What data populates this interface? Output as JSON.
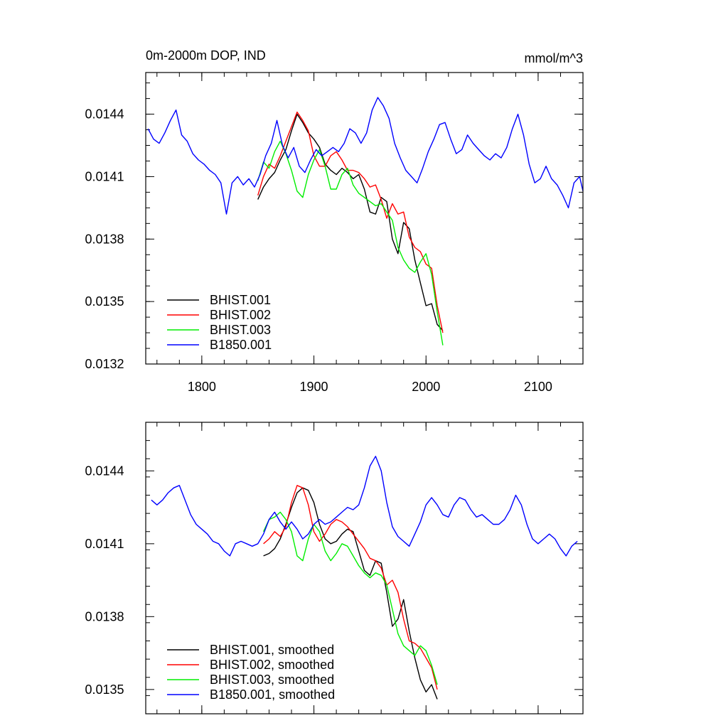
{
  "chart_data": [
    {
      "type": "line",
      "title": "0m-2000m DOP, IND",
      "units": "mmol/m^3",
      "xlabel": "",
      "ylabel": "",
      "xlim": [
        1750,
        2140
      ],
      "ylim": [
        0.0132,
        0.0146
      ],
      "xticks": [
        1800,
        1900,
        2000,
        2100
      ],
      "xtick_labels": [
        "1800",
        "1900",
        "2000",
        "2100"
      ],
      "yticks": [
        0.0132,
        0.0135,
        0.0138,
        0.0141,
        0.0144
      ],
      "ytick_labels": [
        "0.0132",
        "0.0135",
        "0.0138",
        "0.0141",
        "0.0144"
      ],
      "legend_position": "bottom-left",
      "series": [
        {
          "name": "BHIST.001",
          "color": "#000000",
          "x": [
            1850,
            1855,
            1860,
            1865,
            1870,
            1875,
            1880,
            1885,
            1890,
            1895,
            1900,
            1905,
            1910,
            1915,
            1920,
            1925,
            1930,
            1935,
            1940,
            1945,
            1950,
            1955,
            1960,
            1965,
            1970,
            1975,
            1980,
            1985,
            1990,
            1995,
            2000,
            2005,
            2010,
            2015
          ],
          "y": [
            0.01399,
            0.01405,
            0.01409,
            0.01412,
            0.01418,
            0.01423,
            0.01432,
            0.0144,
            0.01436,
            0.01431,
            0.01428,
            0.01424,
            0.01416,
            0.01413,
            0.01411,
            0.01414,
            0.01412,
            0.01409,
            0.01411,
            0.01404,
            0.01393,
            0.01392,
            0.014,
            0.01398,
            0.0138,
            0.01373,
            0.01388,
            0.01385,
            0.0137,
            0.01359,
            0.01348,
            0.01349,
            0.01339,
            0.01336
          ]
        },
        {
          "name": "BHIST.002",
          "color": "#ff0000",
          "x": [
            1850,
            1855,
            1860,
            1865,
            1870,
            1875,
            1880,
            1885,
            1890,
            1895,
            1900,
            1905,
            1910,
            1915,
            1920,
            1925,
            1930,
            1935,
            1940,
            1945,
            1950,
            1955,
            1960,
            1965,
            1970,
            1975,
            1980,
            1985,
            1990,
            1995,
            2000,
            2005,
            2010,
            2015
          ],
          "y": [
            0.01401,
            0.0141,
            0.01416,
            0.01414,
            0.0142,
            0.01427,
            0.01434,
            0.01441,
            0.01437,
            0.01432,
            0.0142,
            0.01415,
            0.01415,
            0.0142,
            0.01422,
            0.01418,
            0.01413,
            0.01413,
            0.01412,
            0.01409,
            0.01405,
            0.01406,
            0.01399,
            0.0139,
            0.01397,
            0.01392,
            0.01393,
            0.01381,
            0.01376,
            0.01374,
            0.01368,
            0.01366,
            0.01348,
            0.01335
          ]
        },
        {
          "name": "BHIST.003",
          "color": "#00ee00",
          "x": [
            1850,
            1855,
            1860,
            1865,
            1870,
            1875,
            1880,
            1885,
            1890,
            1895,
            1900,
            1905,
            1910,
            1915,
            1920,
            1925,
            1930,
            1935,
            1940,
            1945,
            1950,
            1955,
            1960,
            1965,
            1970,
            1975,
            1980,
            1985,
            1990,
            1995,
            2000,
            2005,
            2010,
            2015
          ],
          "y": [
            0.01408,
            0.01417,
            0.01414,
            0.01422,
            0.01427,
            0.01421,
            0.01413,
            0.01403,
            0.014,
            0.01411,
            0.01418,
            0.01423,
            0.01415,
            0.01404,
            0.01404,
            0.01411,
            0.01414,
            0.01406,
            0.01402,
            0.014,
            0.01398,
            0.01396,
            0.01397,
            0.01393,
            0.01389,
            0.01376,
            0.0137,
            0.01366,
            0.01364,
            0.01369,
            0.01373,
            0.01363,
            0.01345,
            0.01329
          ]
        },
        {
          "name": "B1850.001",
          "color": "#0000ff",
          "x": [
            1752,
            1757,
            1762,
            1767,
            1772,
            1777,
            1782,
            1787,
            1792,
            1797,
            1802,
            1807,
            1812,
            1817,
            1822,
            1827,
            1832,
            1837,
            1842,
            1847,
            1852,
            1857,
            1862,
            1867,
            1872,
            1877,
            1882,
            1887,
            1892,
            1897,
            1902,
            1907,
            1912,
            1917,
            1922,
            1927,
            1932,
            1937,
            1942,
            1947,
            1952,
            1957,
            1962,
            1967,
            1972,
            1977,
            1982,
            1987,
            1992,
            1997,
            2002,
            2007,
            2012,
            2017,
            2022,
            2027,
            2032,
            2037,
            2042,
            2047,
            2052,
            2057,
            2062,
            2067,
            2072,
            2077,
            2082,
            2087,
            2092,
            2097,
            2102,
            2107,
            2112,
            2117,
            2122,
            2127,
            2132,
            2137,
            2140
          ],
          "y": [
            0.01433,
            0.01428,
            0.01426,
            0.01431,
            0.01437,
            0.01442,
            0.0143,
            0.01427,
            0.01421,
            0.01418,
            0.01416,
            0.01413,
            0.01411,
            0.01407,
            0.01392,
            0.01407,
            0.0141,
            0.01406,
            0.01409,
            0.01405,
            0.01411,
            0.0142,
            0.01426,
            0.01437,
            0.01425,
            0.01419,
            0.01424,
            0.01415,
            0.01412,
            0.01418,
            0.01423,
            0.0142,
            0.01422,
            0.01424,
            0.01422,
            0.01426,
            0.01433,
            0.01431,
            0.01426,
            0.01431,
            0.01442,
            0.01448,
            0.01444,
            0.01438,
            0.01426,
            0.01419,
            0.01413,
            0.0141,
            0.01407,
            0.01414,
            0.01422,
            0.01428,
            0.01435,
            0.01436,
            0.01428,
            0.01421,
            0.01423,
            0.0143,
            0.01426,
            0.01423,
            0.0142,
            0.01418,
            0.01421,
            0.01419,
            0.01424,
            0.01433,
            0.0144,
            0.0143,
            0.01416,
            0.01407,
            0.01409,
            0.01415,
            0.01409,
            0.01406,
            0.01401,
            0.01395,
            0.01407,
            0.0141,
            0.01403
          ]
        }
      ]
    },
    {
      "type": "line",
      "title": "",
      "units": "",
      "xlabel": "",
      "ylabel": "",
      "xlim": [
        1750,
        2140
      ],
      "ylim": [
        0.0134,
        0.0146
      ],
      "xticks": [
        1800,
        1900,
        2000,
        2100
      ],
      "xtick_labels": [],
      "yticks": [
        0.0135,
        0.0138,
        0.0141,
        0.0144
      ],
      "ytick_labels": [
        "0.0135",
        "0.0138",
        "0.0141",
        "0.0144"
      ],
      "legend_position": "bottom-left",
      "series": [
        {
          "name": "BHIST.001, smoothed",
          "color": "#000000",
          "x": [
            1855,
            1860,
            1865,
            1870,
            1875,
            1880,
            1885,
            1890,
            1895,
            1900,
            1905,
            1910,
            1915,
            1920,
            1925,
            1930,
            1935,
            1940,
            1945,
            1950,
            1955,
            1960,
            1965,
            1970,
            1975,
            1980,
            1985,
            1990,
            1995,
            2000,
            2005,
            2010
          ],
          "y": [
            0.01405,
            0.01406,
            0.01408,
            0.01412,
            0.01418,
            0.01425,
            0.01431,
            0.01433,
            0.01432,
            0.01427,
            0.01418,
            0.01412,
            0.0141,
            0.01411,
            0.01414,
            0.01416,
            0.01415,
            0.01407,
            0.01399,
            0.01397,
            0.01403,
            0.01402,
            0.0139,
            0.01376,
            0.01379,
            0.01387,
            0.01374,
            0.01363,
            0.01354,
            0.01349,
            0.01352,
            0.01346
          ]
        },
        {
          "name": "BHIST.002, smoothed",
          "color": "#ff0000",
          "x": [
            1855,
            1860,
            1865,
            1870,
            1875,
            1880,
            1885,
            1890,
            1895,
            1900,
            1905,
            1910,
            1915,
            1920,
            1925,
            1930,
            1935,
            1940,
            1945,
            1950,
            1955,
            1960,
            1965,
            1970,
            1975,
            1980,
            1985,
            1990,
            1995,
            2000,
            2005,
            2010
          ],
          "y": [
            0.0141,
            0.01412,
            0.01415,
            0.01413,
            0.01417,
            0.01427,
            0.01434,
            0.01433,
            0.01426,
            0.01415,
            0.01411,
            0.01414,
            0.01418,
            0.0142,
            0.01419,
            0.01417,
            0.01414,
            0.01411,
            0.01408,
            0.01404,
            0.01403,
            0.014,
            0.01393,
            0.01395,
            0.0139,
            0.01379,
            0.0137,
            0.01369,
            0.01367,
            0.01363,
            0.01359,
            0.0135
          ]
        },
        {
          "name": "BHIST.003, smoothed",
          "color": "#00ee00",
          "x": [
            1855,
            1860,
            1865,
            1870,
            1875,
            1880,
            1885,
            1890,
            1895,
            1900,
            1905,
            1910,
            1915,
            1920,
            1925,
            1930,
            1935,
            1940,
            1945,
            1950,
            1955,
            1960,
            1965,
            1970,
            1975,
            1980,
            1985,
            1990,
            1995,
            2000,
            2005,
            2010
          ],
          "y": [
            0.01415,
            0.0142,
            0.01421,
            0.01423,
            0.0142,
            0.01415,
            0.01405,
            0.01403,
            0.01412,
            0.01418,
            0.01415,
            0.01407,
            0.01403,
            0.01406,
            0.0141,
            0.01409,
            0.01405,
            0.01401,
            0.01398,
            0.01396,
            0.01398,
            0.01397,
            0.01393,
            0.01383,
            0.01373,
            0.01368,
            0.01366,
            0.01364,
            0.01368,
            0.01366,
            0.0136,
            0.01352
          ]
        },
        {
          "name": "B1850.001, smoothed",
          "color": "#0000ff",
          "x": [
            1755,
            1760,
            1765,
            1770,
            1775,
            1780,
            1785,
            1790,
            1795,
            1800,
            1805,
            1810,
            1815,
            1820,
            1825,
            1830,
            1835,
            1840,
            1845,
            1850,
            1855,
            1860,
            1865,
            1870,
            1875,
            1880,
            1885,
            1890,
            1895,
            1900,
            1905,
            1910,
            1915,
            1920,
            1925,
            1930,
            1935,
            1940,
            1945,
            1950,
            1955,
            1960,
            1965,
            1970,
            1975,
            1980,
            1985,
            1990,
            1995,
            2000,
            2005,
            2010,
            2015,
            2020,
            2025,
            2030,
            2035,
            2040,
            2045,
            2050,
            2055,
            2060,
            2065,
            2070,
            2075,
            2080,
            2085,
            2090,
            2095,
            2100,
            2105,
            2110,
            2115,
            2120,
            2125,
            2130,
            2135
          ],
          "y": [
            0.01428,
            0.01426,
            0.01428,
            0.01431,
            0.01433,
            0.01434,
            0.01428,
            0.01422,
            0.01418,
            0.01416,
            0.01414,
            0.01411,
            0.0141,
            0.01407,
            0.01405,
            0.0141,
            0.01411,
            0.0141,
            0.01409,
            0.0141,
            0.01414,
            0.0142,
            0.01423,
            0.01419,
            0.01416,
            0.01419,
            0.01416,
            0.01412,
            0.01414,
            0.01418,
            0.0142,
            0.01418,
            0.01419,
            0.01421,
            0.01423,
            0.01425,
            0.01424,
            0.01426,
            0.01433,
            0.01442,
            0.01446,
            0.0144,
            0.01427,
            0.01417,
            0.01413,
            0.01411,
            0.01409,
            0.01414,
            0.01419,
            0.01426,
            0.01429,
            0.01426,
            0.01422,
            0.01421,
            0.01426,
            0.01429,
            0.01428,
            0.01424,
            0.01421,
            0.01422,
            0.0142,
            0.01418,
            0.01418,
            0.0142,
            0.01424,
            0.0143,
            0.01426,
            0.01418,
            0.01412,
            0.0141,
            0.01412,
            0.01414,
            0.01412,
            0.01408,
            0.01405,
            0.01409,
            0.01411
          ]
        }
      ]
    }
  ]
}
